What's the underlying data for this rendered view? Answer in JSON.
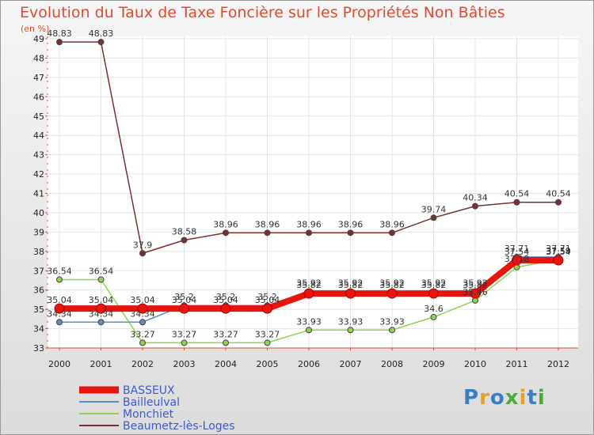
{
  "chart_data": {
    "type": "line",
    "title": "Evolution du Taux de Taxe Foncière sur les Propriétés Non Bâties",
    "ylabel": "(en %)",
    "xlabel": "",
    "x": [
      "2000",
      "2001",
      "2002",
      "2003",
      "2004",
      "2005",
      "2006",
      "2007",
      "2008",
      "2009",
      "2010",
      "2011",
      "2012"
    ],
    "ylim": [
      33,
      49
    ],
    "yticks": [
      33,
      34,
      35,
      36,
      37,
      38,
      39,
      40,
      41,
      42,
      43,
      44,
      45,
      46,
      47,
      48,
      49
    ],
    "legend_position": "bottom-left",
    "series": [
      {
        "name": "BASSEUX",
        "color": "#e8150f",
        "values": [
          35.04,
          35.04,
          35.04,
          35.04,
          35.04,
          35.04,
          35.82,
          35.82,
          35.82,
          35.82,
          35.82,
          37.54,
          37.54
        ],
        "labels": [
          "35.04",
          "35.04",
          "35.04",
          "35.04",
          "35.04",
          "35.04",
          "35.82",
          "35.82",
          "35.82",
          "35.82",
          "35.82",
          "37.54",
          "37.54"
        ]
      },
      {
        "name": "Bailleulval",
        "color": "#5b8ec5",
        "values": [
          34.34,
          34.34,
          34.34,
          35.2,
          35.2,
          35.2,
          35.92,
          35.92,
          35.92,
          35.92,
          35.92,
          37.71,
          37.71
        ],
        "labels": [
          "34.34",
          "34.34",
          "34.34",
          "35.2",
          "35.2",
          "35.2",
          "35.92",
          "35.92",
          "35.92",
          "35.92",
          "35.92",
          "37.71",
          "37.71"
        ]
      },
      {
        "name": "Monchiet",
        "color": "#8fd44e",
        "values": [
          36.54,
          36.54,
          33.27,
          33.27,
          33.27,
          33.27,
          33.93,
          33.93,
          33.93,
          34.6,
          35.46,
          37.18,
          37.59
        ],
        "labels": [
          "36.54",
          "36.54",
          "33.27",
          "33.27",
          "33.27",
          "33.27",
          "33.93",
          "33.93",
          "33.93",
          "34.6",
          "35.46",
          "37.18",
          "37.59"
        ]
      },
      {
        "name": "Beaumetz-lès-Loges",
        "color": "#7a3030",
        "values": [
          48.83,
          48.83,
          37.9,
          38.58,
          38.96,
          38.96,
          38.96,
          38.96,
          38.96,
          39.74,
          40.34,
          40.54,
          40.54
        ],
        "labels": [
          "48.83",
          "48.83",
          "37.9",
          "38.58",
          "38.96",
          "38.96",
          "38.96",
          "38.96",
          "38.96",
          "39.74",
          "40.34",
          "40.54",
          "40.54"
        ]
      }
    ]
  },
  "logo": {
    "text": "Proxiti"
  }
}
